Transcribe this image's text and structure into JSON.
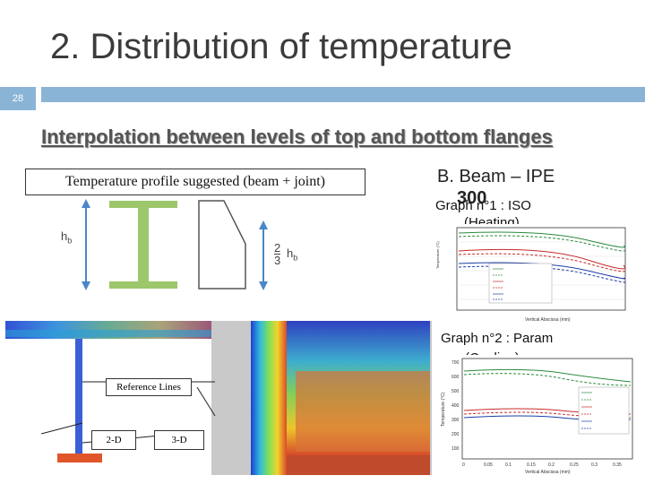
{
  "slide": {
    "title": "2. Distribution of temperature",
    "number": "28",
    "subheading": "Interpolation between levels of top and bottom flanges"
  },
  "profile_box": {
    "label": "Temperature profile suggested (beam + joint)"
  },
  "beam": {
    "label_line1": "B. Beam – IPE",
    "label_line2": "300"
  },
  "dims": {
    "hb": "h",
    "hb_sub": "b",
    "ratio_num": "2",
    "ratio_den": "3",
    "ratio_h": "h",
    "ratio_sub": "b"
  },
  "graph1": {
    "caption_line1": "Graph n°1 : ISO",
    "caption_line2": "(Heating)",
    "xlabel": "Vertical Abscissa (mm)",
    "ylabel": "Temperature (°C)",
    "xticks": [
      "0",
      "0.05",
      "0.1",
      "0.15",
      "0.2",
      "0.25",
      "0.3"
    ]
  },
  "graph2": {
    "caption_line1": "Graph n°2 : Param",
    "caption_line2": "(Cooling)",
    "xlabel": "Vertical Abscissa (mm)",
    "ylabel": "Temperature (°C)",
    "xticks": [
      "0",
      "0.05",
      "0.1",
      "0.15",
      "0.2",
      "0.25",
      "0.3",
      "0.35"
    ],
    "yticks": [
      "100",
      "200",
      "300",
      "400",
      "500",
      "600",
      "700"
    ]
  },
  "model": {
    "ref_lines": "Reference Lines",
    "label_2d": "2-D",
    "label_3d": "3-D"
  },
  "colors": {
    "accent": "#8ab4d6",
    "beam_green": "#9cc76a",
    "heat_red": "#d94a2a",
    "cool_blue": "#2a4fd9"
  }
}
